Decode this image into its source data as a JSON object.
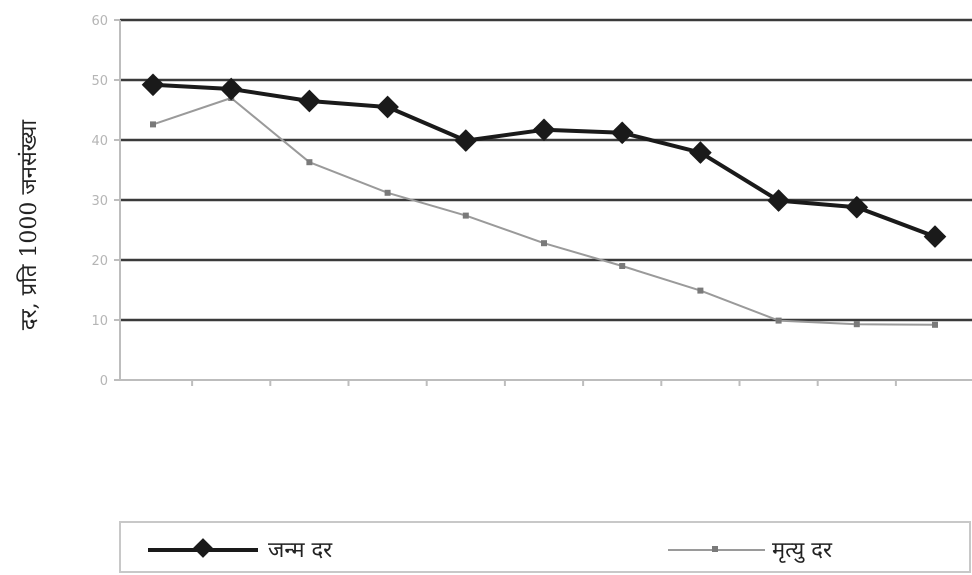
{
  "chart_data": {
    "type": "line",
    "ylabel": "दर, प्रति 1000 जनसंख्या",
    "ylim": [
      0,
      60
    ],
    "yticks": [
      "0",
      "10",
      "20",
      "30",
      "40",
      "50",
      "60"
    ],
    "grid": true,
    "legend_position": "bottom",
    "x": [
      "",
      "",
      "",
      "",
      "",
      "",
      "",
      "",
      "",
      "",
      ""
    ],
    "series": [
      {
        "name": "जन्म दर",
        "color": "#1a1a1a",
        "marker": "diamond",
        "values": [
          49.2,
          48.5,
          46.5,
          45.5,
          39.9,
          41.7,
          41.2,
          37.9,
          29.9,
          28.8,
          23.9
        ]
      },
      {
        "name": "मृत्यु दर",
        "color": "#9a9a9a",
        "marker": "small",
        "values": [
          42.6,
          47.0,
          36.3,
          31.2,
          27.4,
          22.8,
          19.0,
          14.9,
          9.9,
          9.3,
          9.2
        ]
      }
    ]
  },
  "colors": {
    "grid": "#3a3a3a",
    "axis": "#bdbdbd",
    "background": "#ffffff"
  }
}
